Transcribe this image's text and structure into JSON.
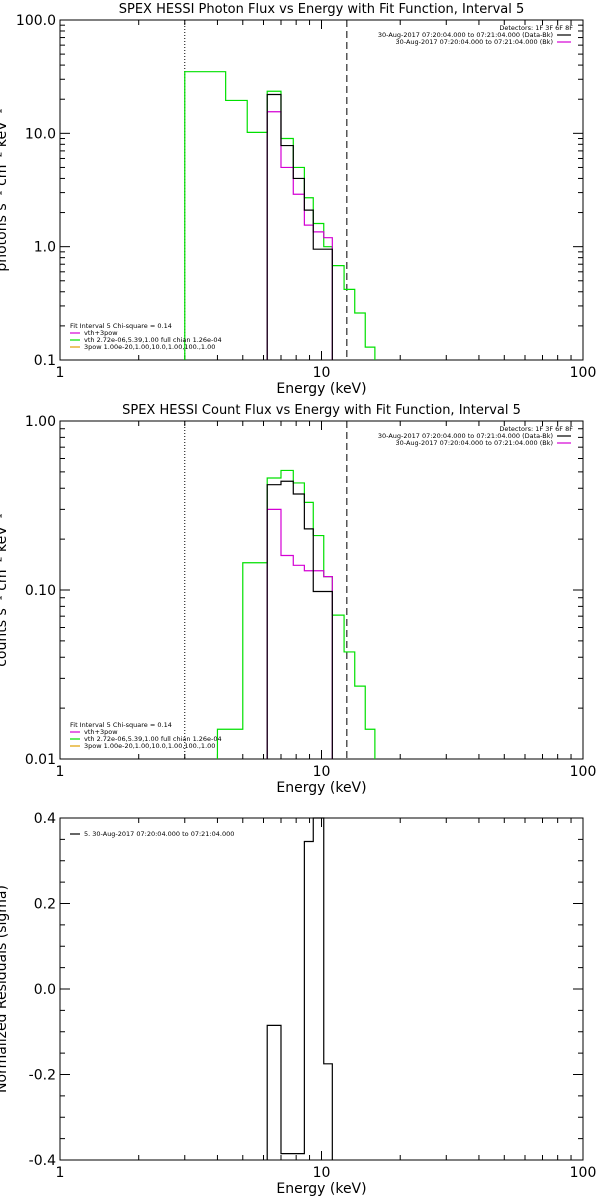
{
  "chart_data": [
    {
      "type": "line",
      "title": "SPEX HESSI Photon Flux vs Energy with Fit Function, Interval 5",
      "xlabel": "Energy (keV)",
      "ylabel": "photons s⁻¹ cm⁻² keV⁻¹",
      "xscale": "log",
      "yscale": "log",
      "xlim": [
        1,
        100
      ],
      "ylim": [
        0.1,
        100
      ],
      "xtick_labels": [
        "1",
        "10",
        "100"
      ],
      "xtick_values": [
        1,
        10,
        100
      ],
      "ytick_labels": [
        "0.1",
        "1.0",
        "10.0",
        "100.0"
      ],
      "ytick_values": [
        0.1,
        1,
        10,
        100
      ],
      "vlines": [
        {
          "x": 3.0,
          "style": "dotted"
        },
        {
          "x": 12.5,
          "style": "dashed"
        }
      ],
      "legend_right": {
        "header": "Detectors: 1F 3F 6F 8F",
        "items": [
          {
            "text": "30-Aug-2017 07:20:04.000 to 07:21:04.000 (Data-Bk)",
            "color": "#000000"
          },
          {
            "text": "30-Aug-2017 07:20:04.000 to 07:21:04.000 (Bk)",
            "color": "#d400d4"
          }
        ]
      },
      "legend_left": {
        "header": "Fit Interval 5   Chi-square = 0.14",
        "items": [
          {
            "text": "vth+3pow",
            "color": "#d400d4"
          },
          {
            "text": "vth 2.72e-06,5.39,1.00  full chian 1.26e-04",
            "color": "#00e000"
          },
          {
            "text": "3pow 1.00e-20,1.00,10.0,1.00,100.,1.00",
            "color": "#e0a000"
          }
        ]
      },
      "series": [
        {
          "role": "data",
          "color": "#000000",
          "edges": [
            6.2,
            7.0,
            7.8,
            8.6,
            9.3,
            10.2,
            11.0
          ],
          "values": [
            22,
            7.8,
            4.0,
            2.1,
            0.95,
            0.95
          ]
        },
        {
          "role": "background",
          "color": "#d400d4",
          "edges": [
            6.2,
            7.0,
            7.8,
            8.6,
            9.3,
            10.2,
            11.0
          ],
          "values": [
            15.5,
            5.0,
            2.9,
            1.55,
            1.35,
            1.2
          ]
        },
        {
          "role": "fit",
          "color": "#00e000",
          "edges": [
            3.0,
            3.6,
            4.3,
            5.2,
            6.2,
            7.0,
            7.8,
            8.6,
            9.3,
            10.2,
            11.0,
            12.2,
            13.4,
            14.7,
            16.0
          ],
          "values": [
            35,
            35,
            19.5,
            10.2,
            23.5,
            9.0,
            5.0,
            2.7,
            1.6,
            1.0,
            0.68,
            0.42,
            0.26,
            0.13
          ]
        }
      ]
    },
    {
      "type": "line",
      "title": "SPEX HESSI Count Flux vs Energy with Fit Function, Interval 5",
      "xlabel": "Energy (keV)",
      "ylabel": "counts s⁻¹ cm⁻² keV⁻¹",
      "xscale": "log",
      "yscale": "log",
      "xlim": [
        1,
        100
      ],
      "ylim": [
        0.01,
        1.0
      ],
      "xtick_labels": [
        "1",
        "10",
        "100"
      ],
      "xtick_values": [
        1,
        10,
        100
      ],
      "ytick_labels": [
        "0.01",
        "0.10",
        "1.00"
      ],
      "ytick_values": [
        0.01,
        0.1,
        1.0
      ],
      "vlines": [
        {
          "x": 3.0,
          "style": "dotted"
        },
        {
          "x": 12.5,
          "style": "dashed"
        }
      ],
      "legend_right": {
        "header": "Detectors: 1F 3F 6F 8F",
        "items": [
          {
            "text": "30-Aug-2017 07:20:04.000 to 07:21:04.000 (Data-Bk)",
            "color": "#000000"
          },
          {
            "text": "30-Aug-2017 07:20:04.000 to 07:21:04.000 (Bk)",
            "color": "#d400d4"
          }
        ]
      },
      "legend_left": {
        "header": "Fit Interval 5   Chi-square = 0.14",
        "items": [
          {
            "text": "vth+3pow",
            "color": "#d400d4"
          },
          {
            "text": "vth 2.72e-06,5.39,1.00  full chian 1.26e-04",
            "color": "#00e000"
          },
          {
            "text": "3pow 1.00e-20,1.00,10.0,1.00,100.,1.00",
            "color": "#e0a000"
          }
        ]
      },
      "series": [
        {
          "role": "data",
          "color": "#000000",
          "edges": [
            6.2,
            7.0,
            7.8,
            8.6,
            9.3,
            10.2,
            11.0
          ],
          "values": [
            0.42,
            0.44,
            0.37,
            0.23,
            0.098,
            0.098
          ]
        },
        {
          "role": "background",
          "color": "#d400d4",
          "edges": [
            6.2,
            7.0,
            7.8,
            8.6,
            9.3,
            10.2,
            11.0
          ],
          "values": [
            0.3,
            0.16,
            0.14,
            0.13,
            0.13,
            0.12
          ]
        },
        {
          "role": "fit",
          "color": "#00e000",
          "edges": [
            4.0,
            5.0,
            6.2,
            7.0,
            7.8,
            8.6,
            9.3,
            10.2,
            11.0,
            12.2,
            13.4,
            14.7,
            16.0
          ],
          "values": [
            0.015,
            0.145,
            0.46,
            0.51,
            0.43,
            0.33,
            0.21,
            0.12,
            0.071,
            0.043,
            0.027,
            0.015
          ]
        }
      ]
    },
    {
      "type": "bar",
      "title": "",
      "xlabel": "Energy (keV)",
      "ylabel": "Normalized Residuals (sigma)",
      "xscale": "log",
      "yscale": "linear",
      "xlim": [
        1,
        100
      ],
      "ylim": [
        -0.4,
        0.4
      ],
      "xtick_labels": [
        "1",
        "10",
        "100"
      ],
      "xtick_values": [
        1,
        10,
        100
      ],
      "ytick_labels": [
        "-0.4",
        "-0.2",
        "0.0",
        "0.2",
        "0.4"
      ],
      "ytick_values": [
        -0.4,
        -0.2,
        0.0,
        0.2,
        0.4
      ],
      "legend_left": {
        "header": "",
        "items": [
          {
            "text": "5. 30-Aug-2017 07:20:04.000 to 07:21:04.000",
            "color": "#000000"
          }
        ]
      },
      "series": [
        {
          "role": "residuals",
          "color": "#000000",
          "edges": [
            6.2,
            7.0,
            7.8,
            8.6,
            9.3,
            10.2,
            11.0
          ],
          "values": [
            -0.085,
            -0.385,
            -0.385,
            0.345,
            0.4,
            -0.175
          ]
        }
      ]
    }
  ]
}
